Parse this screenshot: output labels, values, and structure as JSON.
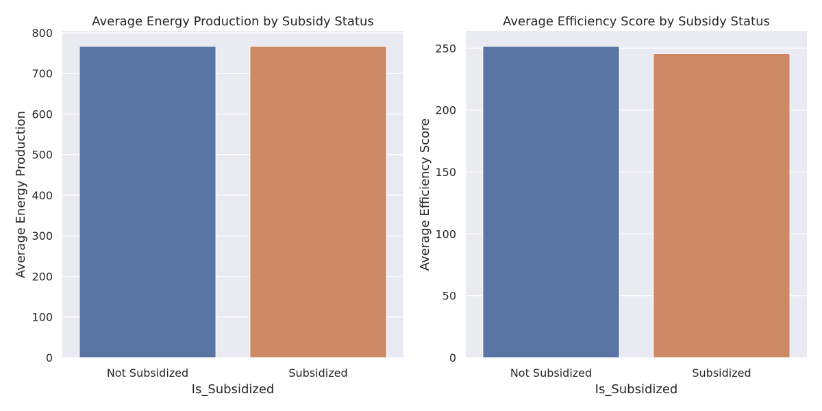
{
  "chart_data": [
    {
      "type": "bar",
      "title": "Average Energy Production by Subsidy Status",
      "xlabel": "Is_Subsidized",
      "ylabel": "Average Energy Production",
      "categories": [
        "Not Subsidized",
        "Subsidized"
      ],
      "values": [
        767,
        767
      ],
      "colors": [
        "#5875a4",
        "#cc8963"
      ],
      "ylim": [
        0,
        805
      ],
      "yticks": [
        0,
        100,
        200,
        300,
        400,
        500,
        600,
        700,
        800
      ],
      "grid": true,
      "background": "#eaeaf2"
    },
    {
      "type": "bar",
      "title": "Average Efficiency Score by Subsidy Status",
      "xlabel": "Is_Subsidized",
      "ylabel": "Average Efficiency Score",
      "categories": [
        "Not Subsidized",
        "Subsidized"
      ],
      "values": [
        251.5,
        245.5
      ],
      "colors": [
        "#5875a4",
        "#cc8963"
      ],
      "ylim": [
        0,
        264
      ],
      "yticks": [
        0,
        50,
        100,
        150,
        200,
        250
      ],
      "grid": true,
      "background": "#eaeaf2"
    }
  ]
}
